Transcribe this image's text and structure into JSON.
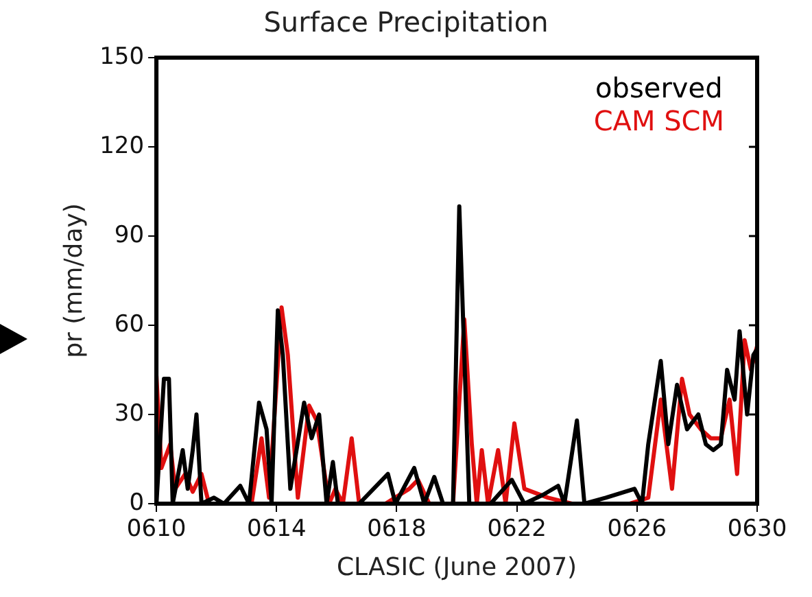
{
  "chart_data": {
    "type": "line",
    "title": "Surface Precipitation",
    "xlabel": "CLASIC (June 2007)",
    "ylabel": "pr (mm/day)",
    "xlim": [
      "2007-06-10",
      "2007-06-30"
    ],
    "xticks": [
      {
        "value": "2007-06-10",
        "label": "0610"
      },
      {
        "value": "2007-06-14",
        "label": "0614"
      },
      {
        "value": "2007-06-18",
        "label": "0618"
      },
      {
        "value": "2007-06-22",
        "label": "0622"
      },
      {
        "value": "2007-06-26",
        "label": "0626"
      },
      {
        "value": "2007-06-30",
        "label": "0630"
      }
    ],
    "ylim": [
      0,
      150
    ],
    "yticks": [
      0,
      30,
      60,
      90,
      120,
      150
    ],
    "grid": false,
    "legend": "top right",
    "marker": "none",
    "line_style": "solid",
    "series": [
      {
        "name": "observed",
        "color": "#000000",
        "x": [
          "2007-06-10T00:00",
          "2007-06-10T06:00",
          "2007-06-10T10:00",
          "2007-06-10T13:00",
          "2007-06-10T21:00",
          "2007-06-11T01:00",
          "2007-06-11T05:00",
          "2007-06-11T08:00",
          "2007-06-11T12:00",
          "2007-06-11T22:00",
          "2007-06-12T06:00",
          "2007-06-12T19:00",
          "2007-06-13T02:00",
          "2007-06-13T10:00",
          "2007-06-13T16:00",
          "2007-06-13T20:00",
          "2007-06-14T01:00",
          "2007-06-14T05:00",
          "2007-06-14T11:00",
          "2007-06-14T22:00",
          "2007-06-15T04:00",
          "2007-06-15T10:00",
          "2007-06-15T16:00",
          "2007-06-15T21:00",
          "2007-06-16T01:00",
          "2007-06-16T18:00",
          "2007-06-17T17:00",
          "2007-06-17T23:00",
          "2007-06-18T14:00",
          "2007-06-18T22:00",
          "2007-06-19T06:00",
          "2007-06-19T13:00",
          "2007-06-19T21:00",
          "2007-06-20T02:00",
          "2007-06-20T10:00",
          "2007-06-21T03:00",
          "2007-06-21T20:00",
          "2007-06-22T06:00",
          "2007-06-22T21:00",
          "2007-06-23T09:00",
          "2007-06-23T14:00",
          "2007-06-24T00:00",
          "2007-06-24T06:00",
          "2007-06-24T23:00",
          "2007-06-25T22:00",
          "2007-06-26T04:00",
          "2007-06-26T09:00",
          "2007-06-26T19:00",
          "2007-06-27T01:00",
          "2007-06-27T08:00",
          "2007-06-27T16:00",
          "2007-06-28T01:00",
          "2007-06-28T07:00",
          "2007-06-28T13:00",
          "2007-06-28T19:00",
          "2007-06-29T00:00",
          "2007-06-29T06:00",
          "2007-06-29T10:00",
          "2007-06-29T16:00",
          "2007-06-29T21:00",
          "2007-06-30T00:00"
        ],
        "values": [
          0,
          42,
          42,
          0,
          18,
          5,
          18,
          30,
          0,
          2,
          0,
          6,
          0,
          34,
          25,
          0,
          65,
          50,
          5,
          34,
          22,
          30,
          0,
          14,
          0,
          0,
          10,
          0,
          12,
          0,
          9,
          0,
          0,
          100,
          0,
          0,
          8,
          0,
          3,
          6,
          0,
          28,
          0,
          2,
          5,
          0,
          20,
          48,
          20,
          40,
          25,
          30,
          20,
          18,
          20,
          45,
          35,
          58,
          30,
          50,
          52
        ]
      },
      {
        "name": "CAM SCM",
        "color": "#e01010",
        "x": [
          "2007-06-10T00:00",
          "2007-06-10T04:00",
          "2007-06-10T11:00",
          "2007-06-10T15:00",
          "2007-06-10T23:00",
          "2007-06-11T05:00",
          "2007-06-11T12:00",
          "2007-06-11T18:00",
          "2007-06-13T04:00",
          "2007-06-13T12:00",
          "2007-06-13T18:00",
          "2007-06-14T04:00",
          "2007-06-14T09:00",
          "2007-06-14T17:00",
          "2007-06-15T02:00",
          "2007-06-15T08:00",
          "2007-06-15T18:00",
          "2007-06-15T23:00",
          "2007-06-16T05:00",
          "2007-06-16T12:00",
          "2007-06-16T18:00",
          "2007-06-17T15:00",
          "2007-06-18T10:00",
          "2007-06-18T17:00",
          "2007-06-19T02:00",
          "2007-06-19T21:00",
          "2007-06-20T06:00",
          "2007-06-20T12:00",
          "2007-06-20T16:00",
          "2007-06-20T20:00",
          "2007-06-21T01:00",
          "2007-06-21T09:00",
          "2007-06-21T15:00",
          "2007-06-21T22:00",
          "2007-06-22T06:00",
          "2007-06-23T01:00",
          "2007-06-23T20:00",
          "2007-06-25T18:00",
          "2007-06-26T09:00",
          "2007-06-26T19:00",
          "2007-06-27T04:00",
          "2007-06-27T12:00",
          "2007-06-27T18:00",
          "2007-06-28T03:00",
          "2007-06-28T11:00",
          "2007-06-28T19:00",
          "2007-06-29T02:00",
          "2007-06-29T08:00",
          "2007-06-29T14:00",
          "2007-06-29T19:00",
          "2007-06-30T00:00"
        ],
        "values": [
          43,
          12,
          20,
          5,
          10,
          4,
          10,
          0,
          0,
          22,
          2,
          66,
          50,
          2,
          33,
          28,
          0,
          5,
          0,
          22,
          0,
          0,
          5,
          8,
          0,
          0,
          62,
          20,
          0,
          18,
          0,
          18,
          0,
          27,
          5,
          2,
          0,
          0,
          2,
          35,
          5,
          42,
          30,
          25,
          22,
          22,
          35,
          10,
          55,
          45,
          53
        ]
      }
    ]
  }
}
